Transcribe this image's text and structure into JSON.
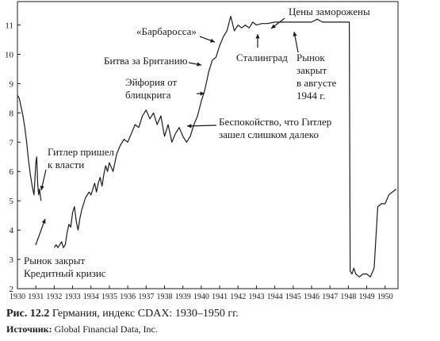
{
  "chart_data": {
    "type": "line",
    "title": "",
    "xlabel": "",
    "ylabel": "",
    "xlim": [
      1930,
      1950.7
    ],
    "ylim": [
      2,
      11.8
    ],
    "grid": false,
    "legend": "none",
    "x_ticks": [
      "1930",
      "1931",
      "1932",
      "1933",
      "1934",
      "1935",
      "1936",
      "1937",
      "1938",
      "1939",
      "1940",
      "1941",
      "1942",
      "1943",
      "1944",
      "1945",
      "1946",
      "1947",
      "1948",
      "1949",
      "1950"
    ],
    "y_ticks": [
      "2",
      "3",
      "4",
      "5",
      "6",
      "7",
      "8",
      "9",
      "10",
      "11"
    ],
    "series": [
      {
        "x": [
          1930.0,
          1930.1,
          1930.2,
          1930.3,
          1930.4,
          1930.5,
          1930.6,
          1930.7,
          1930.8,
          1930.9,
          1931.0,
          1931.05,
          1931.1,
          1931.15,
          1931.2,
          1931.28,
          1932.0,
          1932.1,
          1932.2,
          1932.3,
          1932.4,
          1932.5,
          1932.6,
          1932.7,
          1932.8,
          1932.9,
          1933.0,
          1933.1,
          1933.2,
          1933.3,
          1933.4,
          1933.5,
          1933.6,
          1933.7,
          1933.8,
          1933.9,
          1934.0,
          1934.1,
          1934.2,
          1934.3,
          1934.4,
          1934.5,
          1934.6,
          1934.7,
          1934.8,
          1934.9,
          1935.0,
          1935.2,
          1935.4,
          1935.6,
          1935.8,
          1936.0,
          1936.2,
          1936.4,
          1936.6,
          1936.8,
          1937.0,
          1937.2,
          1937.4,
          1937.6,
          1937.8,
          1938.0,
          1938.2,
          1938.4,
          1938.6,
          1938.8,
          1939.0,
          1939.2,
          1939.4,
          1939.6,
          1939.8,
          1940.0,
          1940.2,
          1940.4,
          1940.6,
          1940.8,
          1941.0,
          1941.2,
          1941.4,
          1941.6,
          1941.8,
          1942.0,
          1942.2,
          1942.4,
          1942.6,
          1942.8,
          1943.0,
          1943.3,
          1943.6,
          1944.0,
          1945.0,
          1946.0,
          1946.3,
          1946.6,
          1947.0,
          1948.0,
          1948.05,
          1948.1,
          1948.2,
          1948.3,
          1948.4,
          1948.6,
          1948.8,
          1949.0,
          1949.2,
          1949.4,
          1949.6,
          1949.8,
          1950.0,
          1950.2,
          1950.4,
          1950.6
        ],
        "values": [
          8.6,
          8.5,
          8.2,
          7.9,
          7.5,
          7.0,
          6.4,
          5.9,
          5.5,
          5.2,
          6.3,
          6.5,
          5.6,
          5.2,
          5.4,
          5.0,
          3.4,
          3.5,
          3.4,
          3.5,
          3.6,
          3.4,
          3.5,
          3.9,
          4.2,
          4.1,
          4.6,
          4.8,
          4.3,
          4.0,
          4.4,
          4.7,
          4.9,
          5.1,
          5.2,
          5.3,
          5.2,
          5.4,
          5.6,
          5.3,
          5.6,
          5.8,
          5.5,
          5.9,
          6.2,
          6.0,
          6.3,
          6.0,
          6.6,
          6.9,
          7.1,
          7.0,
          7.3,
          7.6,
          7.5,
          7.9,
          8.1,
          7.8,
          8.0,
          7.6,
          7.9,
          7.2,
          7.6,
          7.0,
          7.3,
          7.5,
          7.2,
          7.0,
          7.2,
          7.6,
          7.9,
          8.4,
          8.8,
          9.4,
          9.8,
          9.9,
          10.3,
          10.6,
          10.8,
          11.3,
          10.8,
          11.0,
          10.9,
          11.0,
          10.9,
          11.1,
          11.0,
          11.05,
          11.05,
          11.1,
          11.1,
          11.1,
          11.2,
          11.1,
          11.1,
          11.1,
          11.1,
          2.6,
          2.5,
          2.7,
          2.5,
          2.4,
          2.5,
          2.5,
          2.4,
          2.7,
          4.8,
          4.9,
          4.9,
          5.2,
          5.3,
          5.4
        ]
      }
    ],
    "annotations": [
      {
        "lines": [
          "Рынок закрыт",
          "Кредитный кризис"
        ]
      },
      {
        "lines": [
          "Гитлер пришел",
          "к власти"
        ]
      },
      {
        "lines": [
          "«Барбаросса»"
        ]
      },
      {
        "lines": [
          "Битва за Британию"
        ]
      },
      {
        "lines": [
          "Эйфория от",
          "блицкрига"
        ]
      },
      {
        "lines": [
          "Беспокойство, что Гитлер",
          "зашел слишком далеко"
        ]
      },
      {
        "lines": [
          "Сталинград"
        ]
      },
      {
        "lines": [
          "Цены заморожены"
        ]
      },
      {
        "lines": [
          "Рынок",
          "закрыт",
          "в августе",
          "1944 г."
        ]
      }
    ]
  },
  "caption": {
    "label": "Рис. 12.2",
    "text": " Германия, индекс CDAX: 1930–1950 гг."
  },
  "source": {
    "label": "Источник:",
    "text": " Global Financial Data, Inc."
  }
}
